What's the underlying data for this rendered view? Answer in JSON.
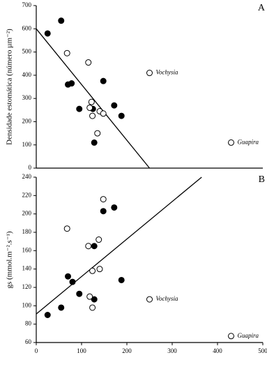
{
  "chart_data": [
    {
      "type": "scatter",
      "label": "A",
      "ylabel": "Densidade estomática (número µm⁻²)",
      "xlim": [
        0,
        500
      ],
      "ylim": [
        0,
        700
      ],
      "yticks": [
        0,
        100,
        200,
        300,
        400,
        500,
        600,
        700
      ],
      "series": [
        {
          "marker": "filled",
          "color": "#000000",
          "x": [
            25,
            55,
            70,
            78,
            95,
            125,
            128,
            148,
            172,
            188
          ],
          "values": [
            580,
            635,
            360,
            365,
            255,
            255,
            110,
            375,
            270,
            225
          ]
        },
        {
          "marker": "open",
          "color": "#ffffff",
          "x": [
            68,
            115,
            118,
            122,
            124,
            135,
            140,
            148,
            250,
            430
          ],
          "values": [
            495,
            455,
            260,
            285,
            225,
            150,
            245,
            235,
            410,
            110
          ]
        }
      ],
      "fit": {
        "x": [
          0,
          250
        ],
        "values": [
          600,
          0
        ]
      },
      "annotations": [
        "Vochysia",
        "Guapira"
      ]
    },
    {
      "type": "scatter",
      "label": "B",
      "ylabel": "gs (mmol.m⁻².s⁻¹)",
      "xlim": [
        0,
        500
      ],
      "xticks": [
        0,
        100,
        200,
        300,
        400,
        500
      ],
      "ylim": [
        60,
        240
      ],
      "yticks": [
        60,
        80,
        100,
        120,
        140,
        160,
        180,
        200,
        220,
        240
      ],
      "series": [
        {
          "marker": "filled",
          "color": "#000000",
          "x": [
            25,
            55,
            70,
            80,
            95,
            128,
            128,
            148,
            172,
            188
          ],
          "values": [
            90,
            98,
            132,
            126,
            113,
            165,
            107,
            203,
            207,
            128
          ]
        },
        {
          "marker": "open",
          "color": "#ffffff",
          "x": [
            68,
            115,
            118,
            124,
            124,
            138,
            140,
            148,
            250,
            430
          ],
          "values": [
            184,
            165,
            110,
            138,
            98,
            172,
            140,
            216,
            107,
            67
          ]
        }
      ],
      "fit": {
        "x": [
          0,
          365
        ],
        "values": [
          91,
          240
        ]
      },
      "annotations": [
        "Vochysia",
        "Guapira"
      ]
    }
  ]
}
